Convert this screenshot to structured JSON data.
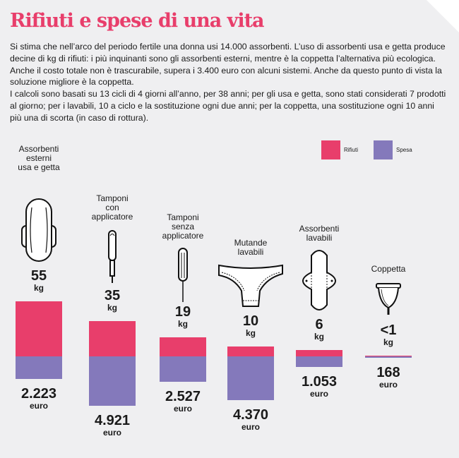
{
  "title": "Rifiuti e spese di una vita",
  "intro": [
    "Si stima che nell’arco del periodo fertile una donna usi 14.000 assorbenti. L’uso di assorbenti usa e getta produce decine di kg di rifiuti: i più inquinanti sono gli assorbenti esterni, mentre è la coppetta l’alternativa più ecologica. Anche il costo totale non è trascurabile, supera i 3.400 euro con alcuni sistemi. Anche da questo punto di vista la soluzione migliore è la coppetta.",
    "I calcoli sono basati su 13 cicli di 4 giorni all’anno, per 38 anni; per gli usa e getta, sono stati considerati 7 prodotti al giorno; per i lavabili, 10 a ciclo e la sostituzione ogni due anni; per la coppetta, una sostituzione ogni 10 anni più una di scorta (in caso di rottura)."
  ],
  "colors": {
    "rifiuti": "#e83e6b",
    "spesa": "#8479bb",
    "title": "#e83e6b"
  },
  "chart_data": {
    "type": "bar",
    "layout": "diverging stacked: waste upward, cost downward",
    "categories": [
      "Assorbenti esterni usa e getta",
      "Tamponi con applicatore",
      "Tamponi senza applicatore",
      "Mutande lavabili",
      "Assorbenti lavabili",
      "Coppetta"
    ],
    "category_lines": [
      [
        "Assorbenti",
        "esterni",
        "usa e getta"
      ],
      [
        "Tamponi",
        "con",
        "applicatore"
      ],
      [
        "Tamponi",
        "senza",
        "applicatore"
      ],
      [
        "Mutande",
        "lavabili"
      ],
      [
        "Assorbenti",
        "lavabili"
      ],
      [
        "Coppetta"
      ]
    ],
    "icons": [
      "pad-icon",
      "applicator-tampon-icon",
      "tampon-icon",
      "underwear-icon",
      "washable-pad-icon",
      "menstrual-cup-icon"
    ],
    "series": [
      {
        "name": "Rifiuti",
        "unit": "kg",
        "values": [
          55,
          35,
          19,
          10,
          6,
          1
        ],
        "labels": [
          "55",
          "35",
          "19",
          "10",
          "6",
          "<1"
        ]
      },
      {
        "name": "Spesa",
        "unit": "euro",
        "values": [
          2223,
          4921,
          2527,
          4370,
          1053,
          168
        ],
        "labels": [
          "2.223",
          "4.921",
          "2.527",
          "4.370",
          "1.053",
          "168"
        ]
      }
    ],
    "legend": {
      "position": "top-right",
      "entries": [
        "Rifiuti",
        "Spesa"
      ]
    }
  }
}
